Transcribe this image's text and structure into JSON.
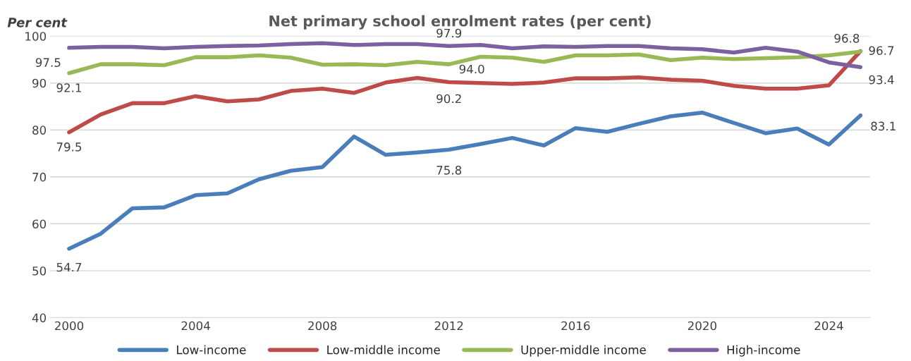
{
  "chart_data": {
    "type": "line",
    "title": "Net primary school enrolment rates (per cent)",
    "ylabel": "Per cent",
    "x": [
      2000,
      2001,
      2002,
      2003,
      2004,
      2005,
      2006,
      2007,
      2008,
      2009,
      2010,
      2011,
      2012,
      2013,
      2014,
      2015,
      2016,
      2017,
      2018,
      2019,
      2020,
      2021,
      2022,
      2023,
      2024,
      2025
    ],
    "series": [
      {
        "name": "Low-income",
        "color": "#4a7ebb",
        "values": [
          54.7,
          57.9,
          63.3,
          63.5,
          66.1,
          66.5,
          69.5,
          71.3,
          72.1,
          78.6,
          74.7,
          75.2,
          75.8,
          77.0,
          78.3,
          76.7,
          80.4,
          79.6,
          81.3,
          82.9,
          83.7,
          81.5,
          79.3,
          80.3,
          76.9,
          83.1
        ],
        "value_labels": [
          "54.7",
          null,
          null,
          null,
          null,
          null,
          null,
          null,
          null,
          null,
          null,
          null,
          "75.8",
          null,
          null,
          null,
          null,
          null,
          null,
          null,
          null,
          null,
          null,
          null,
          null,
          "83.1"
        ]
      },
      {
        "name": "Low-middle income",
        "color": "#be4b48",
        "values": [
          79.5,
          83.3,
          85.7,
          85.7,
          87.2,
          86.1,
          86.5,
          88.3,
          88.8,
          87.9,
          90.1,
          91.1,
          90.2,
          90.0,
          89.8,
          90.1,
          91.0,
          91.0,
          91.2,
          90.7,
          90.5,
          89.4,
          88.8,
          88.8,
          89.5,
          96.8
        ],
        "value_labels": [
          "79.5",
          null,
          null,
          null,
          null,
          null,
          null,
          null,
          null,
          null,
          null,
          null,
          "90.2",
          null,
          null,
          null,
          null,
          null,
          null,
          null,
          null,
          null,
          null,
          null,
          null,
          "96.8"
        ]
      },
      {
        "name": "Upper-middle income",
        "color": "#98b954",
        "values": [
          92.1,
          94.0,
          94.0,
          93.8,
          95.5,
          95.5,
          95.9,
          95.4,
          93.9,
          94.0,
          93.8,
          94.5,
          94.0,
          95.6,
          95.4,
          94.5,
          95.9,
          95.9,
          96.1,
          94.9,
          95.4,
          95.1,
          95.3,
          95.5,
          95.9,
          96.7
        ],
        "value_labels": [
          "92.1",
          null,
          null,
          null,
          null,
          null,
          null,
          null,
          null,
          null,
          null,
          null,
          "94.0",
          null,
          null,
          null,
          null,
          null,
          null,
          null,
          null,
          null,
          null,
          null,
          null,
          "96.7"
        ]
      },
      {
        "name": "High-income",
        "color": "#7d60a0",
        "values": [
          97.5,
          97.7,
          97.7,
          97.4,
          97.7,
          97.9,
          98.0,
          98.3,
          98.5,
          98.1,
          98.3,
          98.3,
          97.9,
          98.1,
          97.4,
          97.8,
          97.7,
          97.9,
          97.9,
          97.4,
          97.2,
          96.5,
          97.5,
          96.7,
          94.4,
          93.4
        ],
        "value_labels": [
          "97.5",
          null,
          null,
          null,
          null,
          null,
          null,
          null,
          null,
          null,
          null,
          null,
          "97.9",
          null,
          null,
          null,
          null,
          null,
          null,
          null,
          null,
          null,
          null,
          null,
          null,
          "93.4"
        ]
      }
    ],
    "xlim": [
      1999.4,
      2025.3
    ],
    "xticks": [
      2000,
      2004,
      2008,
      2012,
      2016,
      2020,
      2024
    ],
    "ylim": [
      40,
      100
    ],
    "yticks": [
      40,
      50,
      60,
      70,
      80,
      90,
      100
    ],
    "grid": "y",
    "legend": "bottom",
    "line_style": "solid",
    "marker": "none"
  }
}
